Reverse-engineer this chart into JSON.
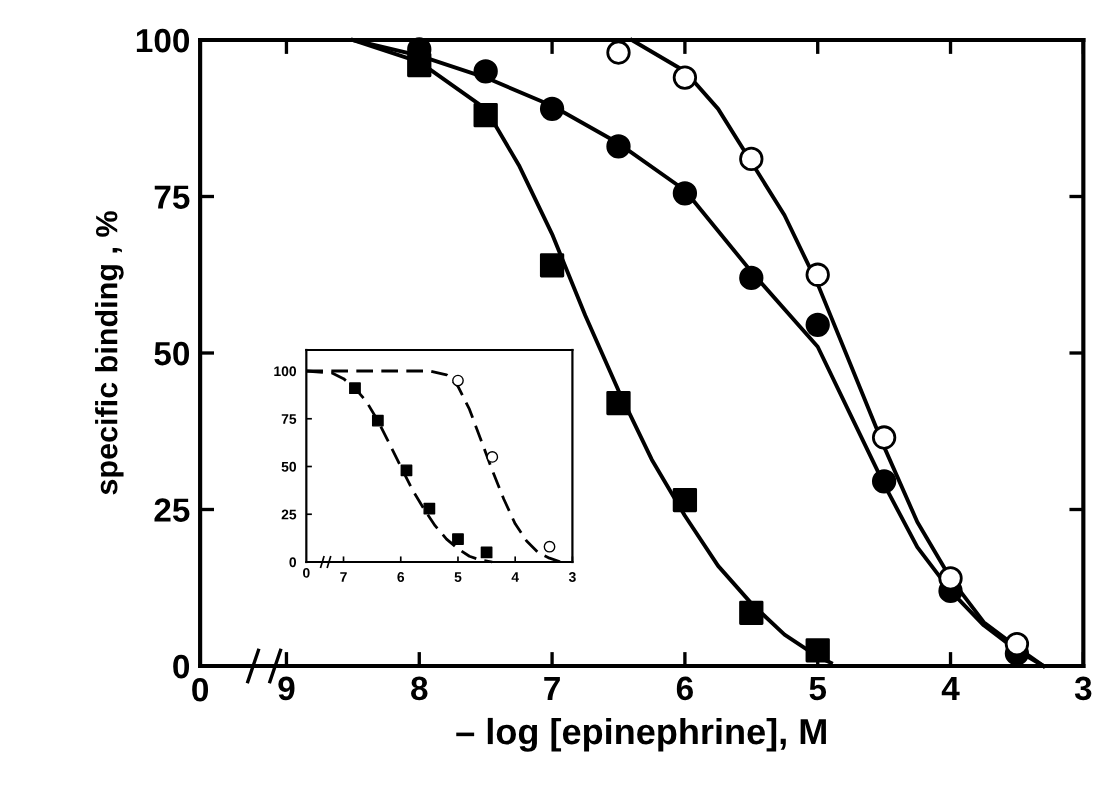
{
  "chart_data": [
    {
      "type": "scatter",
      "xlabel": "– log [epinephrine], M",
      "ylabel": "specific binding , %",
      "xlim": [
        9.65,
        3
      ],
      "ylim": [
        0,
        100
      ],
      "xticks": [
        9,
        8,
        7,
        6,
        5,
        4,
        3
      ],
      "annotations": [
        "0"
      ],
      "yticks": [
        0,
        25,
        50,
        75,
        100
      ],
      "grid": false,
      "legend": false,
      "series": [
        {
          "type": "line",
          "marker": "none",
          "line_style": "solid",
          "color": "#000000",
          "x": [
            8.5,
            8.0,
            7.5,
            7.25,
            7.0,
            6.75,
            6.5,
            6.25,
            6.0,
            5.75,
            5.5,
            5.25,
            5.0,
            4.9
          ],
          "values": [
            100,
            96.5,
            89,
            80,
            69,
            56,
            44,
            33,
            24,
            16,
            10,
            5,
            1.5,
            0.5
          ]
        },
        {
          "type": "line",
          "marker": "none",
          "line_style": "solid",
          "color": "#000000",
          "x": [
            8.5,
            8.0,
            7.5,
            7.0,
            6.5,
            6.0,
            5.5,
            5.0,
            4.75,
            4.5,
            4.25,
            4.0,
            3.75,
            3.5,
            3.3
          ],
          "values": [
            100,
            97.5,
            94,
            89.5,
            83.5,
            76,
            63,
            51,
            40,
            29,
            19,
            12,
            6.5,
            2.5,
            0
          ]
        },
        {
          "type": "line",
          "marker": "none",
          "line_style": "solid",
          "color": "#000000",
          "x": [
            6.4,
            6.0,
            5.75,
            5.5,
            5.25,
            5.0,
            4.75,
            4.5,
            4.25,
            4.0,
            3.75,
            3.5,
            3.3
          ],
          "values": [
            100,
            95,
            89,
            80.5,
            72,
            61,
            48,
            35,
            23,
            14,
            7,
            3,
            0
          ]
        },
        {
          "type": "scatter",
          "marker": "square",
          "color": "#000000",
          "x": [
            8.0,
            7.5,
            7.0,
            6.5,
            6.0,
            5.5,
            5.0
          ],
          "values": [
            96,
            88,
            64,
            42,
            26.5,
            8.5,
            2.5
          ]
        },
        {
          "type": "scatter",
          "marker": "circle",
          "color": "#000000",
          "x": [
            8.0,
            7.5,
            7.0,
            6.5,
            6.0,
            5.5,
            5.0,
            4.5,
            4.0,
            3.5
          ],
          "values": [
            98.5,
            95,
            89,
            83,
            75.5,
            62,
            54.5,
            29.5,
            12,
            2
          ]
        },
        {
          "type": "scatter",
          "marker": "circle",
          "color": "#ffffff",
          "x": [
            6.5,
            6.0,
            5.5,
            5.0,
            4.5,
            4.0,
            3.5
          ],
          "values": [
            98,
            94,
            81,
            62.5,
            36.5,
            14,
            3.5
          ]
        }
      ]
    },
    {
      "type": "scatter",
      "xlim": [
        7.65,
        3
      ],
      "ylim": [
        0,
        111
      ],
      "xticks": [
        7,
        6,
        5,
        4,
        3
      ],
      "annotations": [
        "0"
      ],
      "yticks": [
        0,
        25,
        50,
        75,
        100
      ],
      "grid": false,
      "legend": false,
      "series": [
        {
          "type": "line",
          "marker": "none",
          "line_style": "dashed",
          "color": "#000000",
          "x": [
            7.65,
            7.2,
            7.0,
            6.8,
            6.6,
            6.4,
            6.2,
            6.0,
            5.8,
            5.6,
            5.4,
            5.2,
            5.0,
            4.8,
            4.6,
            4.4
          ],
          "values": [
            100,
            99,
            96,
            91,
            84,
            74,
            62,
            50,
            38,
            28,
            19,
            12,
            7,
            3,
            1,
            0
          ]
        },
        {
          "type": "line",
          "marker": "none",
          "line_style": "dashed",
          "color": "#000000",
          "x": [
            7.65,
            5.5,
            5.2,
            5.0,
            4.8,
            4.6,
            4.4,
            4.2,
            4.0,
            3.8,
            3.6,
            3.4,
            3.2
          ],
          "values": [
            100,
            100,
            98,
            92,
            80,
            64,
            48,
            33,
            20,
            11,
            5,
            2,
            0
          ]
        },
        {
          "type": "scatter",
          "marker": "square",
          "color": "#000000",
          "x": [
            6.8,
            6.4,
            5.9,
            5.5,
            5.0,
            4.5
          ],
          "values": [
            91,
            74,
            48,
            28,
            12,
            5
          ]
        },
        {
          "type": "scatter",
          "marker": "circle",
          "color": "#ffffff",
          "x": [
            5.0,
            4.4,
            3.4
          ],
          "values": [
            95,
            55,
            8
          ]
        }
      ]
    }
  ]
}
